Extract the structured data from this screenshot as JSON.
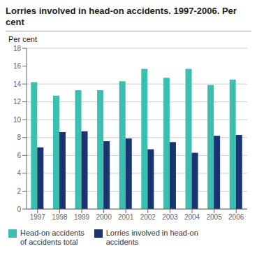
{
  "chart_data": {
    "type": "bar",
    "title": "Lorries involved in head-on accidents. 1997-2006. Per cent",
    "ylabel": "Per cent",
    "categories": [
      "1997",
      "1998",
      "1999",
      "2000",
      "2001",
      "2002",
      "2003",
      "2004",
      "2005",
      "2006"
    ],
    "series": [
      {
        "name": "Head-on accidents\nof accidents total",
        "color": "#3dbfb0",
        "values": [
          14.2,
          12.7,
          13.3,
          13.3,
          14.3,
          15.7,
          14.7,
          15.7,
          13.9,
          14.5
        ]
      },
      {
        "name": "Lorries involved in head-on\naccidents",
        "color": "#1a3472",
        "values": [
          6.9,
          8.6,
          8.7,
          7.6,
          7.9,
          6.7,
          7.5,
          6.3,
          8.2,
          8.3
        ]
      }
    ],
    "ylim": [
      0,
      18
    ],
    "yticks": [
      0,
      2,
      4,
      6,
      8,
      10,
      12,
      14,
      16,
      18
    ],
    "grid": true,
    "legend": "lower left"
  }
}
